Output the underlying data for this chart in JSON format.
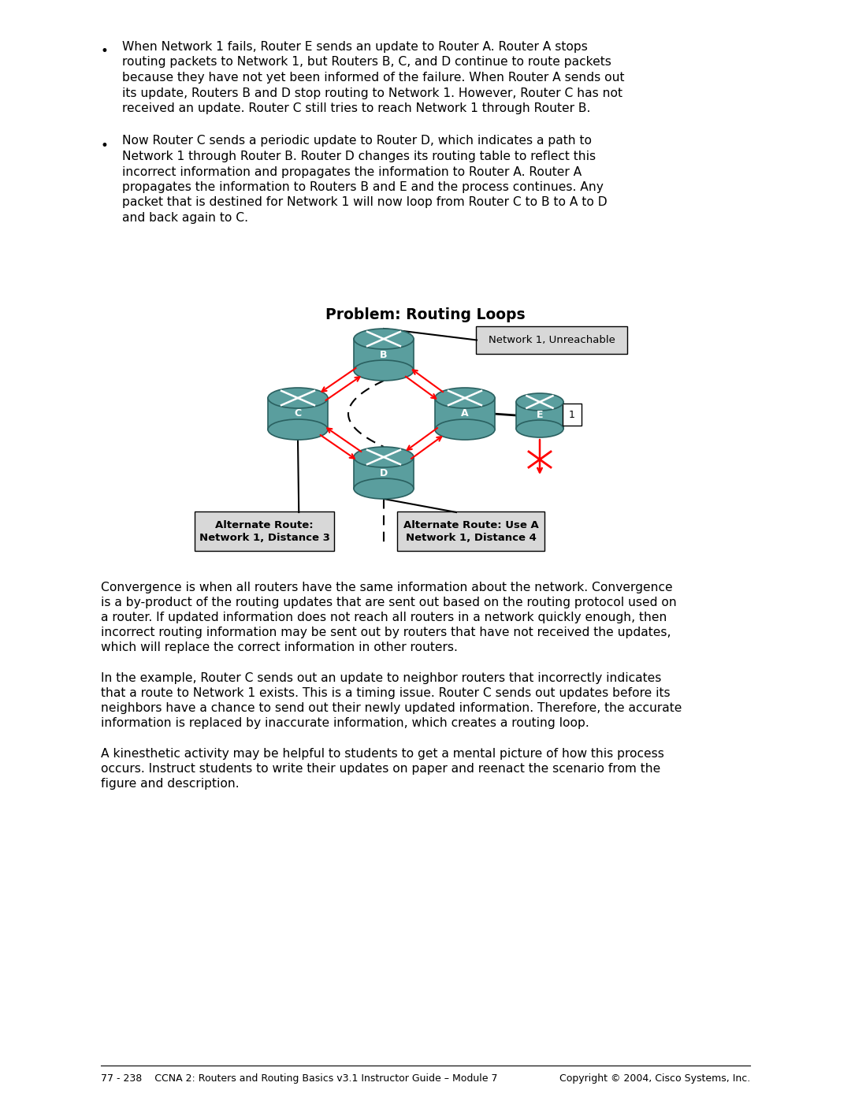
{
  "title": "Problem: Routing Loops",
  "bg_color": "#ffffff",
  "bullet1_lines": [
    "When Network 1 fails, Router E sends an update to Router A. Router A stops",
    "routing packets to Network 1, but Routers B, C, and D continue to route packets",
    "because they have not yet been informed of the failure. When Router A sends out",
    "its update, Routers B and D stop routing to Network 1. However, Router C has not",
    "received an update. Router C still tries to reach Network 1 through Router B."
  ],
  "bullet2_lines": [
    "Now Router C sends a periodic update to Router D, which indicates a path to",
    "Network 1 through Router B. Router D changes its routing table to reflect this",
    "incorrect information and propagates the information to Router A. Router A",
    "propagates the information to Routers B and E and the process continues. Any",
    "packet that is destined for Network 1 will now loop from Router C to B to A to D",
    "and back again to C."
  ],
  "para1_lines": [
    "Convergence is when all routers have the same information about the network. Convergence",
    "is a by-product of the routing updates that are sent out based on the routing protocol used on",
    "a router. If updated information does not reach all routers in a network quickly enough, then",
    "incorrect routing information may be sent out by routers that have not received the updates,",
    "which will replace the correct information in other routers."
  ],
  "para2_lines": [
    "In the example, Router C sends out an update to neighbor routers that incorrectly indicates",
    "that a route to Network 1 exists. This is a timing issue. Router C sends out updates before its",
    "neighbors have a chance to send out their newly updated information. Therefore, the accurate",
    "information is replaced by inaccurate information, which creates a routing loop."
  ],
  "para3_lines": [
    "A kinesthetic activity may be helpful to students to get a mental picture of how this process",
    "occurs. Instruct students to write their updates on paper and reenact the scenario from the",
    "figure and description."
  ],
  "footer_left": "77 - 238    CCNA 2: Routers and Routing Basics v3.1 Instructor Guide – Module 7",
  "footer_right": "Copyright © 2004, Cisco Systems, Inc.",
  "router_color": "#5a9e9e",
  "arrow_color": "#ff0000",
  "network1_box": "Network 1, Unreachable",
  "alt_route_left_line1": "Alternate Route:",
  "alt_route_left_line2": "Network 1, Distance 3",
  "alt_route_right_line1": "Alternate Route: Use A",
  "alt_route_right_line2": "Network 1, Distance 4",
  "num_label": "1"
}
